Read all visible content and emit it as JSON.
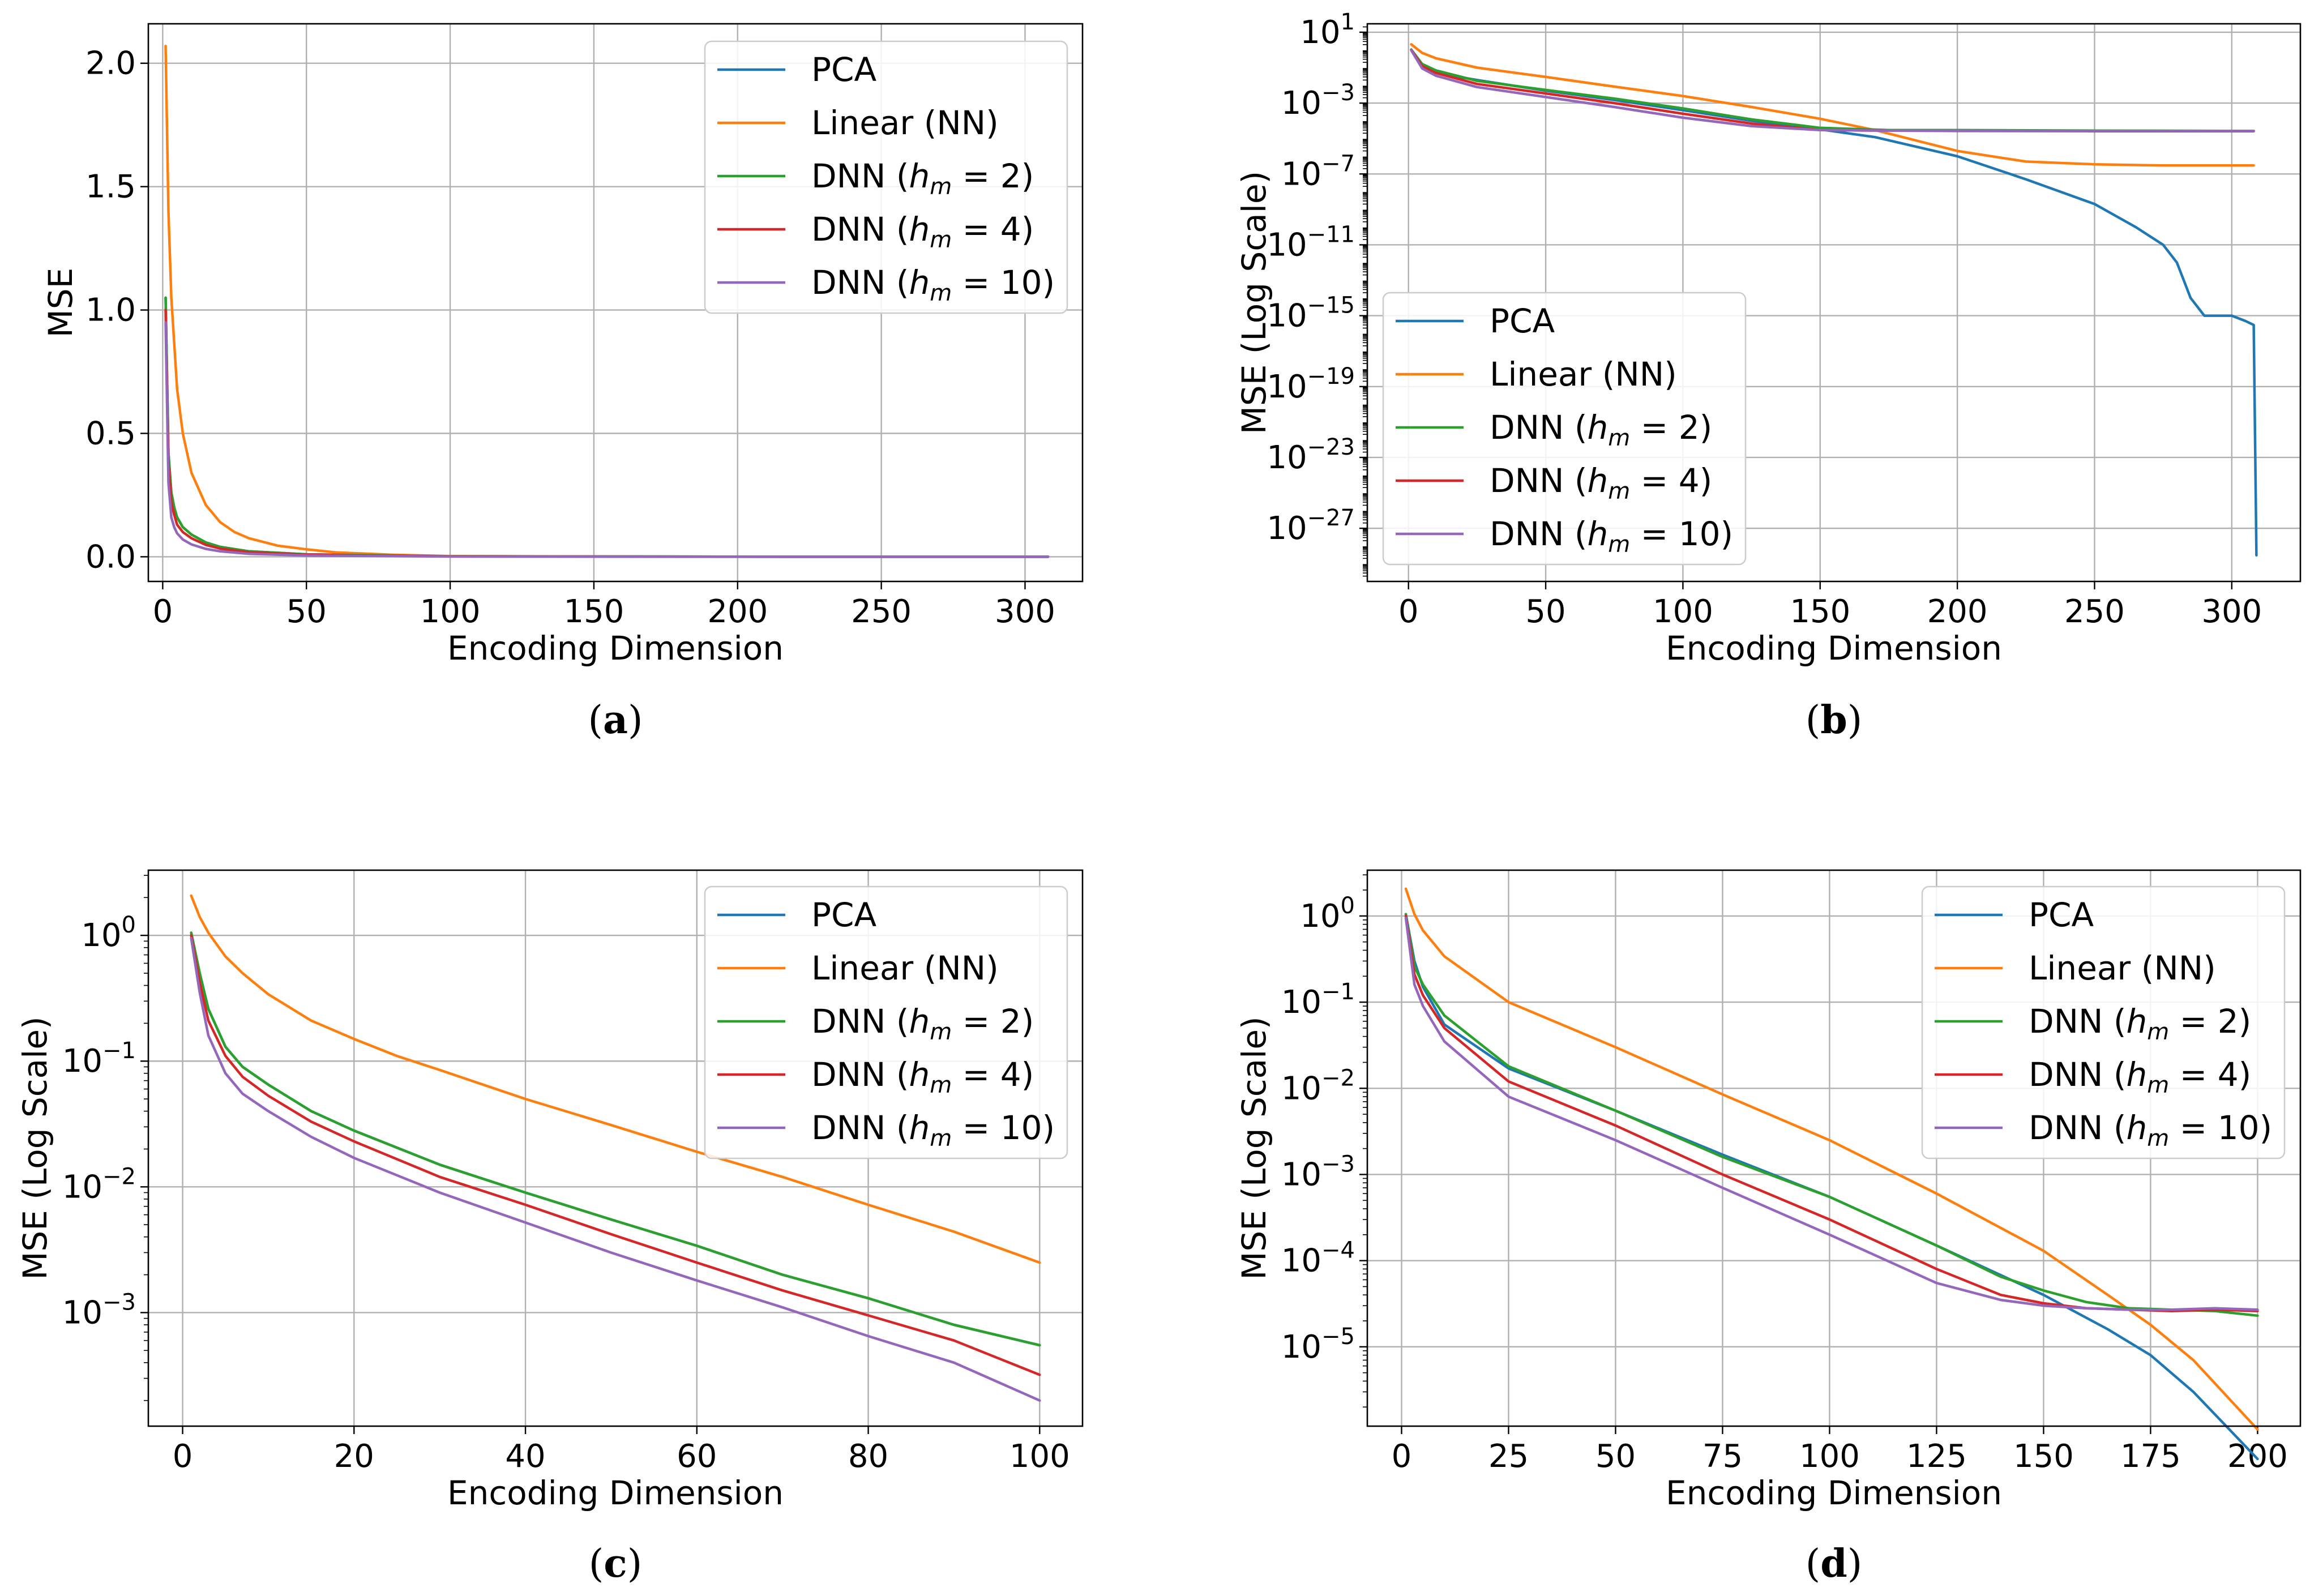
{
  "chart_data": [
    {
      "type": "line",
      "caption": {
        "open": "(",
        "letter": "a",
        "close": ")"
      },
      "xlabel": "Encoding Dimension",
      "ylabel": "MSE",
      "yscale": "linear",
      "xlim": [
        -5,
        320
      ],
      "ylim": [
        -0.1,
        2.16
      ],
      "xticks": [
        0,
        50,
        100,
        150,
        200,
        250,
        300
      ],
      "xtick_labels": [
        "0",
        "50",
        "100",
        "150",
        "200",
        "250",
        "300"
      ],
      "yticks": [
        0,
        0.5,
        1,
        1.5,
        2
      ],
      "ytick_labels": [
        "0.0",
        "0.5",
        "1.0",
        "1.5",
        "2.0"
      ],
      "grid": true,
      "legend_position": "top-right",
      "series": [
        {
          "name": "PCA",
          "color": "#1f77b4",
          "x": [
            1,
            2,
            3,
            4,
            5,
            7,
            10,
            15,
            20,
            30,
            50,
            100,
            200,
            308
          ],
          "y": [
            1.05,
            0.42,
            0.26,
            0.2,
            0.16,
            0.12,
            0.09,
            0.058,
            0.04,
            0.022,
            0.01,
            0.002,
            0.0003,
            0.0
          ]
        },
        {
          "name": "Linear (NN)",
          "color": "#ff7f0e",
          "x": [
            1,
            2,
            3,
            5,
            7,
            10,
            15,
            20,
            25,
            30,
            40,
            50,
            60,
            80,
            100,
            150,
            200,
            308
          ],
          "y": [
            2.07,
            1.4,
            1.05,
            0.68,
            0.5,
            0.34,
            0.21,
            0.14,
            0.1,
            0.075,
            0.045,
            0.03,
            0.018,
            0.008,
            0.0025,
            0.0003,
            0.0001,
            0.0
          ]
        },
        {
          "name": "DNN ($h_m=2$)",
          "color": "#2ca02c",
          "x": [
            1,
            2,
            3,
            4,
            5,
            7,
            10,
            15,
            20,
            30,
            50,
            100,
            200,
            308
          ],
          "y": [
            1.05,
            0.42,
            0.26,
            0.2,
            0.16,
            0.12,
            0.09,
            0.058,
            0.04,
            0.022,
            0.01,
            0.002,
            0.0003,
            0.0
          ]
        },
        {
          "name": "DNN ($h_m=4$)",
          "color": "#d62728",
          "x": [
            1,
            2,
            3,
            4,
            5,
            7,
            10,
            15,
            20,
            30,
            50,
            100,
            200,
            308
          ],
          "y": [
            1.0,
            0.38,
            0.22,
            0.17,
            0.13,
            0.1,
            0.075,
            0.048,
            0.033,
            0.018,
            0.008,
            0.0015,
            0.0002,
            0.0
          ]
        },
        {
          "name": "DNN ($h_m=10$)",
          "color": "#9467bd",
          "x": [
            1,
            2,
            3,
            4,
            5,
            7,
            10,
            15,
            20,
            30,
            50,
            100,
            200,
            308
          ],
          "y": [
            0.95,
            0.3,
            0.16,
            0.12,
            0.095,
            0.07,
            0.05,
            0.032,
            0.022,
            0.012,
            0.005,
            0.001,
            0.0001,
            0.0
          ]
        }
      ]
    },
    {
      "type": "line",
      "caption": {
        "open": "(",
        "letter": "b",
        "close": ")"
      },
      "xlabel": "Encoding Dimension",
      "ylabel": "MSE (Log Scale)",
      "yscale": "log",
      "xlim": [
        -15,
        325
      ],
      "ylim": [
        1e-30,
        30
      ],
      "xticks": [
        0,
        50,
        100,
        150,
        200,
        250,
        300
      ],
      "xtick_labels": [
        "0",
        "50",
        "100",
        "150",
        "200",
        "250",
        "300"
      ],
      "yticks": [
        10,
        0.001,
        1e-07,
        1e-11,
        1e-15,
        1e-19,
        1e-23,
        1e-27
      ],
      "ytick_labels": [
        {
          "base": "10",
          "exp": "1"
        },
        {
          "base": "10",
          "exp": "−3"
        },
        {
          "base": "10",
          "exp": "−7"
        },
        {
          "base": "10",
          "exp": "−11"
        },
        {
          "base": "10",
          "exp": "−15"
        },
        {
          "base": "10",
          "exp": "−19"
        },
        {
          "base": "10",
          "exp": "−23"
        },
        {
          "base": "10",
          "exp": "−27"
        }
      ],
      "grid": true,
      "legend_position": "lower-left",
      "series": [
        {
          "name": "PCA",
          "color": "#1f77b4",
          "x": [
            1,
            5,
            10,
            25,
            50,
            75,
            100,
            125,
            150,
            170,
            200,
            225,
            250,
            265,
            275,
            280,
            285,
            290,
            300,
            305,
            308,
            309
          ],
          "y": [
            1.05,
            0.12,
            0.05,
            0.02,
            0.005,
            0.0015,
            0.0004,
            0.0001,
            3.3e-05,
            1.2e-05,
            1e-06,
            5e-08,
            2e-09,
            1e-10,
            1e-11,
            1e-12,
            1e-14,
            1e-15,
            1e-15,
            5e-16,
            3e-16,
            3e-29
          ]
        },
        {
          "name": "Linear (NN)",
          "color": "#ff7f0e",
          "x": [
            1,
            5,
            10,
            25,
            50,
            75,
            100,
            125,
            150,
            170,
            200,
            225,
            250,
            275,
            300,
            308
          ],
          "y": [
            2.07,
            0.68,
            0.34,
            0.1,
            0.03,
            0.0085,
            0.0025,
            0.0006,
            0.00013,
            3e-05,
            2e-06,
            5e-07,
            3.5e-07,
            3e-07,
            3e-07,
            3e-07
          ]
        },
        {
          "name": "DNN ($h_m=2$)",
          "color": "#2ca02c",
          "x": [
            1,
            5,
            10,
            25,
            50,
            75,
            100,
            125,
            150,
            175,
            200,
            250,
            300,
            308
          ],
          "y": [
            1.05,
            0.16,
            0.07,
            0.018,
            0.0055,
            0.0018,
            0.0005,
            0.00012,
            4e-05,
            3e-05,
            3e-05,
            2.8e-05,
            2.7e-05,
            2.7e-05
          ]
        },
        {
          "name": "DNN ($h_m=4$)",
          "color": "#d62728",
          "x": [
            1,
            5,
            10,
            25,
            50,
            75,
            100,
            125,
            150,
            175,
            200,
            250,
            300,
            308
          ],
          "y": [
            1.0,
            0.12,
            0.05,
            0.012,
            0.0035,
            0.001,
            0.00025,
            7e-05,
            3e-05,
            2.8e-05,
            2.7e-05,
            2.6e-05,
            2.6e-05,
            2.6e-05
          ]
        },
        {
          "name": "DNN ($h_m=10$)",
          "color": "#9467bd",
          "x": [
            1,
            5,
            10,
            25,
            50,
            75,
            100,
            125,
            150,
            175,
            200,
            250,
            300,
            308
          ],
          "y": [
            0.95,
            0.09,
            0.035,
            0.008,
            0.0022,
            0.0006,
            0.00015,
            5e-05,
            3e-05,
            2.8e-05,
            2.8e-05,
            2.7e-05,
            2.7e-05,
            2.7e-05
          ]
        }
      ]
    },
    {
      "type": "line",
      "caption": {
        "open": "(",
        "letter": "c",
        "close": ")"
      },
      "xlabel": "Encoding Dimension",
      "ylabel": "MSE (Log Scale)",
      "yscale": "log",
      "xlim": [
        -4,
        105
      ],
      "ylim": [
        0.000125,
        3.3
      ],
      "xticks": [
        0,
        20,
        40,
        60,
        80,
        100
      ],
      "xtick_labels": [
        "0",
        "20",
        "40",
        "60",
        "80",
        "100"
      ],
      "yticks": [
        1,
        0.1,
        0.01,
        0.001
      ],
      "ytick_labels": [
        {
          "base": "10",
          "exp": "0"
        },
        {
          "base": "10",
          "exp": "−1"
        },
        {
          "base": "10",
          "exp": "−2"
        },
        {
          "base": "10",
          "exp": "−3"
        }
      ],
      "grid": true,
      "legend_position": "top-right",
      "series": [
        {
          "name": "PCA",
          "color": "#1f77b4",
          "x": [
            1,
            2,
            3,
            5,
            7,
            10,
            15,
            20,
            30,
            40,
            50,
            60,
            70,
            80,
            90,
            100
          ],
          "y": [
            1.05,
            0.5,
            0.26,
            0.13,
            0.09,
            0.065,
            0.04,
            0.028,
            0.015,
            0.009,
            0.0055,
            0.0034,
            0.002,
            0.0013,
            0.0008,
            0.00055
          ]
        },
        {
          "name": "Linear (NN)",
          "color": "#ff7f0e",
          "x": [
            1,
            2,
            3,
            5,
            7,
            10,
            15,
            20,
            25,
            30,
            40,
            50,
            60,
            70,
            80,
            90,
            100
          ],
          "y": [
            2.07,
            1.4,
            1.05,
            0.68,
            0.5,
            0.34,
            0.21,
            0.15,
            0.11,
            0.085,
            0.05,
            0.031,
            0.019,
            0.012,
            0.0072,
            0.0044,
            0.0025
          ]
        },
        {
          "name": "DNN ($h_m=2$)",
          "color": "#2ca02c",
          "x": [
            1,
            2,
            3,
            5,
            7,
            10,
            15,
            20,
            30,
            40,
            50,
            60,
            70,
            80,
            90,
            100
          ],
          "y": [
            1.05,
            0.5,
            0.26,
            0.13,
            0.09,
            0.065,
            0.04,
            0.028,
            0.015,
            0.009,
            0.0055,
            0.0034,
            0.002,
            0.0013,
            0.0008,
            0.00055
          ]
        },
        {
          "name": "DNN ($h_m=4$)",
          "color": "#d62728",
          "x": [
            1,
            2,
            3,
            5,
            7,
            10,
            15,
            20,
            30,
            40,
            50,
            60,
            70,
            80,
            90,
            100
          ],
          "y": [
            1.0,
            0.42,
            0.21,
            0.11,
            0.075,
            0.053,
            0.033,
            0.023,
            0.012,
            0.0072,
            0.0042,
            0.0025,
            0.0015,
            0.00095,
            0.0006,
            0.00032
          ]
        },
        {
          "name": "DNN ($h_m=10$)",
          "color": "#9467bd",
          "x": [
            1,
            2,
            3,
            5,
            7,
            10,
            15,
            20,
            30,
            40,
            50,
            60,
            70,
            80,
            90,
            100
          ],
          "y": [
            0.95,
            0.35,
            0.16,
            0.08,
            0.055,
            0.04,
            0.025,
            0.017,
            0.009,
            0.0052,
            0.003,
            0.0018,
            0.0011,
            0.00065,
            0.0004,
            0.0002
          ]
        }
      ]
    },
    {
      "type": "line",
      "caption": {
        "open": "(",
        "letter": "d",
        "close": ")"
      },
      "xlabel": "Encoding Dimension",
      "ylabel": "MSE (Log Scale)",
      "yscale": "log",
      "xlim": [
        -8,
        210
      ],
      "ylim": [
        1.2e-06,
        3.4
      ],
      "xticks": [
        0,
        25,
        50,
        75,
        100,
        125,
        150,
        175,
        200
      ],
      "xtick_labels": [
        "0",
        "25",
        "50",
        "75",
        "100",
        "125",
        "150",
        "175",
        "200"
      ],
      "yticks": [
        1,
        0.1,
        0.01,
        0.001,
        0.0001,
        1e-05
      ],
      "ytick_labels": [
        {
          "base": "10",
          "exp": "0"
        },
        {
          "base": "10",
          "exp": "−1"
        },
        {
          "base": "10",
          "exp": "−2"
        },
        {
          "base": "10",
          "exp": "−3"
        },
        {
          "base": "10",
          "exp": "−4"
        },
        {
          "base": "10",
          "exp": "−5"
        }
      ],
      "grid": true,
      "legend_position": "top-right",
      "series": [
        {
          "name": "PCA",
          "color": "#1f77b4",
          "x": [
            1,
            3,
            5,
            10,
            25,
            50,
            75,
            100,
            125,
            150,
            165,
            175,
            185,
            200
          ],
          "y": [
            1.05,
            0.3,
            0.15,
            0.055,
            0.017,
            0.0055,
            0.0017,
            0.00055,
            0.00015,
            4e-05,
            1.6e-05,
            8e-06,
            3e-06,
            5e-07
          ]
        },
        {
          "name": "Linear (NN)",
          "color": "#ff7f0e",
          "x": [
            1,
            3,
            5,
            10,
            25,
            50,
            75,
            100,
            125,
            150,
            165,
            175,
            185,
            200
          ],
          "y": [
            2.07,
            1.05,
            0.68,
            0.34,
            0.1,
            0.03,
            0.0085,
            0.0025,
            0.0006,
            0.00013,
            4e-05,
            1.8e-05,
            7e-06,
            1.1e-06
          ]
        },
        {
          "name": "DNN ($h_m=2$)",
          "color": "#2ca02c",
          "x": [
            1,
            3,
            5,
            10,
            25,
            50,
            75,
            100,
            125,
            140,
            150,
            160,
            170,
            180,
            190,
            200
          ],
          "y": [
            1.05,
            0.26,
            0.16,
            0.07,
            0.018,
            0.0055,
            0.0016,
            0.00055,
            0.00015,
            6.5e-05,
            4.5e-05,
            3.3e-05,
            2.8e-05,
            2.7e-05,
            2.6e-05,
            2.3e-05
          ]
        },
        {
          "name": "DNN ($h_m=4$)",
          "color": "#d62728",
          "x": [
            1,
            3,
            5,
            10,
            25,
            50,
            75,
            100,
            125,
            140,
            150,
            160,
            170,
            180,
            190,
            200
          ],
          "y": [
            1.0,
            0.21,
            0.12,
            0.05,
            0.012,
            0.0037,
            0.001,
            0.0003,
            8e-05,
            4e-05,
            3.2e-05,
            2.8e-05,
            2.7e-05,
            2.6e-05,
            2.7e-05,
            2.6e-05
          ]
        },
        {
          "name": "DNN ($h_m=10$)",
          "color": "#9467bd",
          "x": [
            1,
            3,
            5,
            10,
            25,
            50,
            75,
            100,
            125,
            140,
            150,
            160,
            170,
            180,
            190,
            200
          ],
          "y": [
            0.95,
            0.16,
            0.09,
            0.035,
            0.008,
            0.0025,
            0.0007,
            0.0002,
            5.5e-05,
            3.5e-05,
            3e-05,
            2.8e-05,
            2.7e-05,
            2.7e-05,
            2.8e-05,
            2.7e-05
          ]
        }
      ]
    }
  ]
}
